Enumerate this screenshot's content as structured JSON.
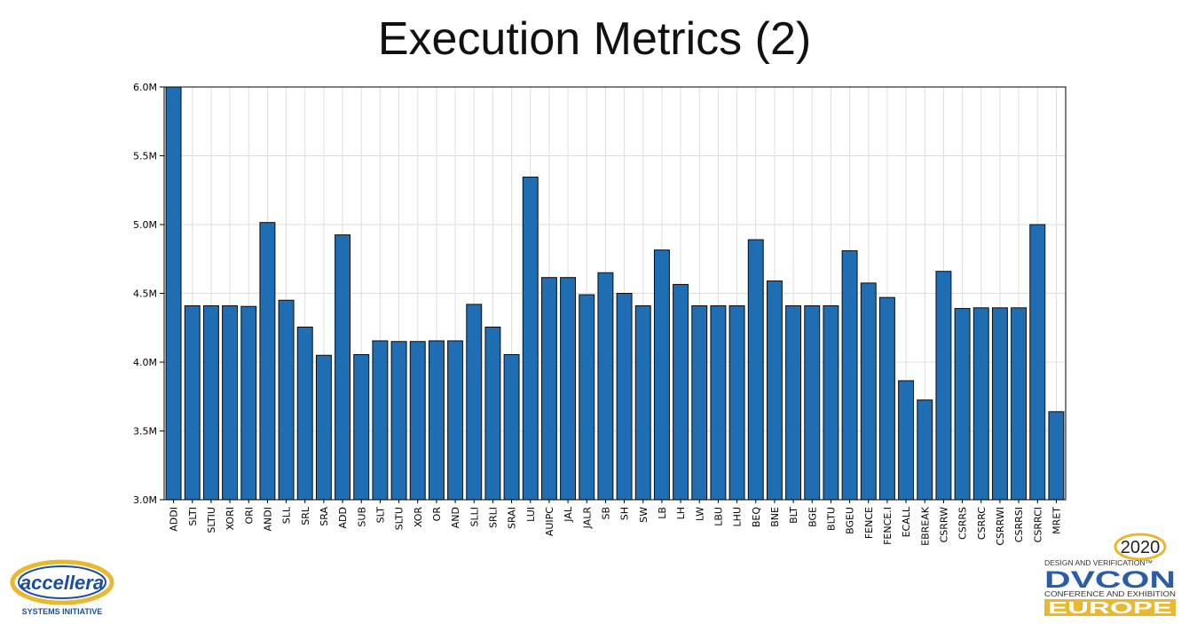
{
  "slide": {
    "title": "Execution Metrics (2)"
  },
  "logos": {
    "accellera": {
      "name": "accellera",
      "subtitle": "SYSTEMS INITIATIVE"
    },
    "dvcon": {
      "year": "2020",
      "tagline": "DESIGN AND VERIFICATION™",
      "name": "DVCON",
      "subtitle": "CONFERENCE AND EXHIBITION",
      "region": "EUROPE"
    }
  },
  "colors": {
    "bar": "#1f6eb4",
    "bar_edge": "#0b0b0b",
    "grid": "#dedede",
    "dvcon_blue": "#2a5caa",
    "europe_gold": "#e8b830"
  },
  "chart_data": {
    "type": "bar",
    "title": "",
    "xlabel": "",
    "ylabel": "",
    "ylim": [
      3.0,
      6.0
    ],
    "y_unit": "M",
    "yticks": [
      "3.0M",
      "3.5M",
      "4.0M",
      "4.5M",
      "5.0M",
      "5.5M",
      "6.0M"
    ],
    "grid": true,
    "categories": [
      "ADDI",
      "SLTI",
      "SLTIU",
      "XORI",
      "ORI",
      "ANDI",
      "SLL",
      "SRL",
      "SRA",
      "ADD",
      "SUB",
      "SLT",
      "SLTU",
      "XOR",
      "OR",
      "AND",
      "SLLI",
      "SRLI",
      "SRAI",
      "LUI",
      "AUIPC",
      "JAL",
      "JALR",
      "SB",
      "SH",
      "SW",
      "LB",
      "LH",
      "LW",
      "LBU",
      "LHU",
      "BEQ",
      "BNE",
      "BLT",
      "BGE",
      "BLTU",
      "BGEU",
      "FENCE",
      "FENCE.I",
      "ECALL",
      "EBREAK",
      "CSRRW",
      "CSRRS",
      "CSRRC",
      "CSRRWI",
      "CSRRSI",
      "CSRRCI",
      "MRET"
    ],
    "values": [
      6.0,
      4.41,
      4.41,
      4.41,
      4.405,
      5.015,
      4.45,
      4.255,
      4.05,
      4.925,
      4.055,
      4.155,
      4.15,
      4.15,
      4.155,
      4.155,
      4.42,
      4.255,
      4.055,
      5.345,
      4.615,
      4.615,
      4.49,
      4.65,
      4.5,
      4.41,
      4.815,
      4.565,
      4.41,
      4.41,
      4.41,
      4.89,
      4.59,
      4.41,
      4.41,
      4.41,
      4.81,
      4.575,
      4.47,
      3.865,
      3.725,
      4.66,
      4.39,
      4.395,
      4.395,
      4.395,
      5.0,
      3.64
    ]
  }
}
